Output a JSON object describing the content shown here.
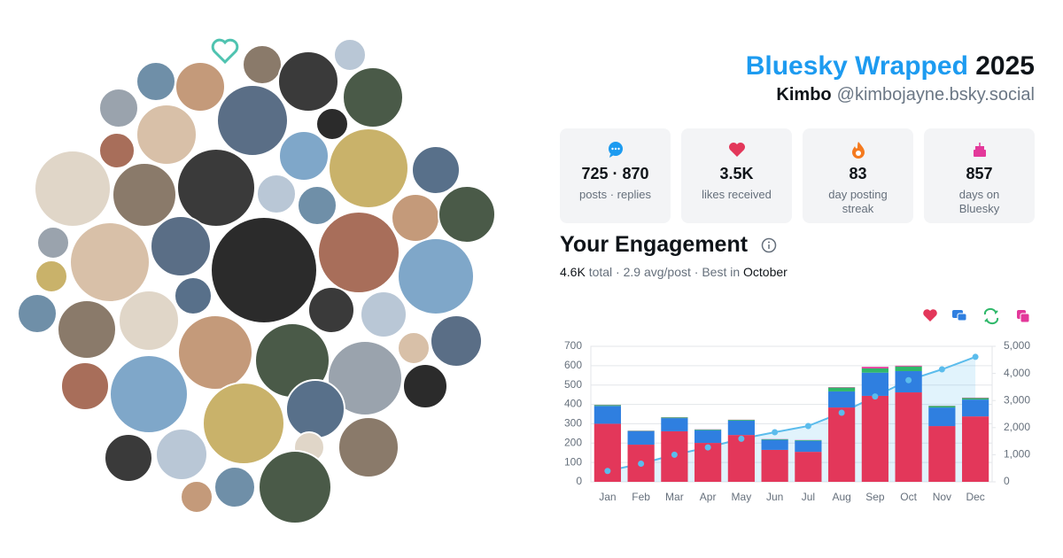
{
  "header": {
    "title": "Bluesky Wrapped",
    "year": "2025",
    "display_name": "Kimbo",
    "handle": "@kimbojayne.bsky.social"
  },
  "stats": [
    {
      "value": "725 · 870",
      "label": "posts · replies"
    },
    {
      "value": "3.5K",
      "label": "likes received"
    },
    {
      "value": "83",
      "label": "day posting streak"
    },
    {
      "value": "857",
      "label": "days on Bluesky"
    }
  ],
  "engagement": {
    "heading": "Your Engagement",
    "total": "4.6K",
    "total_label": "total ·",
    "average": "2.9 avg/post ·",
    "best_label": "Best in",
    "best_month": "October"
  },
  "chart_data": {
    "type": "bar",
    "stacked": true,
    "grid": true,
    "categories": [
      "Jan",
      "Feb",
      "Mar",
      "Apr",
      "May",
      "Jun",
      "Jul",
      "Aug",
      "Sep",
      "Oct",
      "Nov",
      "Dec"
    ],
    "series": [
      {
        "color": "#e3375a",
        "values": [
          300,
          192,
          261,
          201,
          242,
          165,
          155,
          384,
          444,
          462,
          288,
          338
        ]
      },
      {
        "color": "#2f7fe0",
        "values": [
          92,
          70,
          68,
          66,
          74,
          52,
          57,
          83,
          120,
          110,
          96,
          87
        ]
      },
      {
        "color": "#2fb86a",
        "values": [
          5,
          2,
          4,
          3,
          4,
          3,
          3,
          20,
          22,
          24,
          8,
          8
        ]
      },
      {
        "color": "#e3389a",
        "values": [
          1,
          1,
          1,
          1,
          1,
          1,
          1,
          2,
          8,
          4,
          1,
          2
        ]
      },
      {
        "type": "line",
        "axis": "y2",
        "color": "#5bbcec",
        "values": [
          400,
          670,
          1000,
          1270,
          1590,
          1830,
          2060,
          2550,
          3150,
          3750,
          4150,
          4610
        ]
      }
    ],
    "ylim": [
      0,
      700
    ],
    "yticks": [
      0,
      100,
      200,
      300,
      400,
      500,
      600,
      700
    ],
    "y2lim": [
      0,
      5000
    ],
    "y2ticks": [
      0,
      {
        "value": 1000,
        "label": "1,000"
      },
      {
        "value": 2000,
        "label": "2,000"
      },
      {
        "value": 3000,
        "label": "3,000"
      },
      {
        "value": 4000,
        "label": "4,000"
      },
      {
        "value": 5000,
        "label": "5,000"
      }
    ]
  }
}
